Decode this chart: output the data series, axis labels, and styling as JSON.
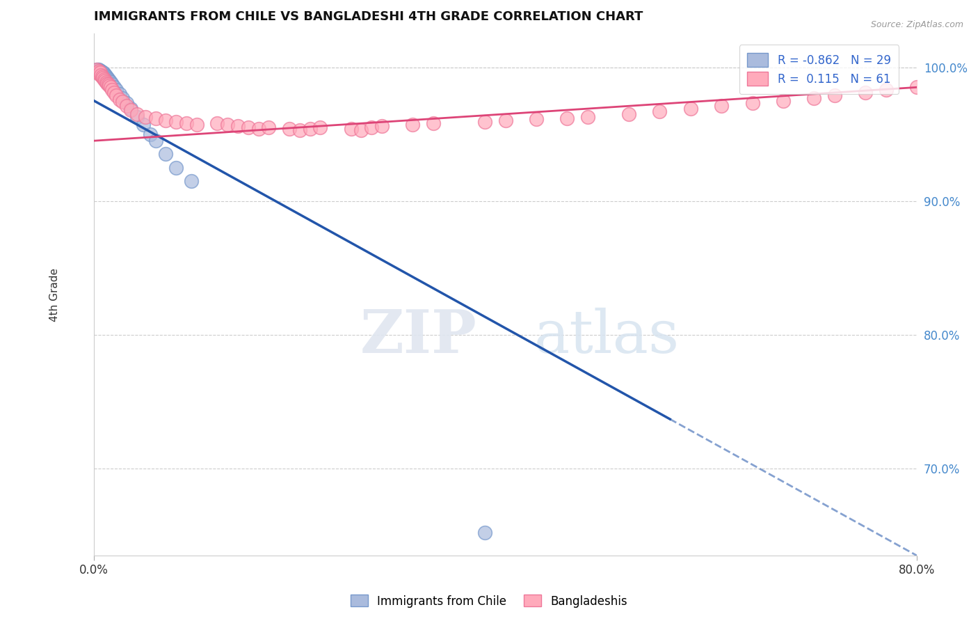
{
  "title": "IMMIGRANTS FROM CHILE VS BANGLADESHI 4TH GRADE CORRELATION CHART",
  "source": "Source: ZipAtlas.com",
  "ylabel": "4th Grade",
  "legend_blue_label": "Immigrants from Chile",
  "legend_pink_label": "Bangladeshis",
  "r_blue": -0.862,
  "n_blue": 29,
  "r_pink": 0.115,
  "n_pink": 61,
  "blue_color": "#aabbdd",
  "pink_color": "#ffaabb",
  "blue_edge_color": "#7799cc",
  "pink_edge_color": "#ee7799",
  "blue_line_color": "#2255aa",
  "pink_line_color": "#dd4477",
  "watermark_zip": "ZIP",
  "watermark_atlas": "atlas",
  "ytick_labels": [
    "70.0%",
    "80.0%",
    "90.0%",
    "100.0%"
  ],
  "ytick_values": [
    0.7,
    0.8,
    0.9,
    1.0
  ],
  "xlim": [
    0.0,
    0.8
  ],
  "ylim": [
    0.635,
    1.025
  ],
  "blue_line_x0": 0.0,
  "blue_line_y0": 0.975,
  "blue_line_x1": 0.8,
  "blue_line_y1": 0.635,
  "pink_line_x0": 0.0,
  "pink_line_y0": 0.945,
  "pink_line_x1": 0.8,
  "pink_line_y1": 0.985,
  "blue_scatter_x": [
    0.003,
    0.004,
    0.005,
    0.006,
    0.007,
    0.008,
    0.009,
    0.01,
    0.011,
    0.012,
    0.013,
    0.014,
    0.015,
    0.016,
    0.018,
    0.02,
    0.022,
    0.025,
    0.028,
    0.032,
    0.036,
    0.042,
    0.048,
    0.055,
    0.06,
    0.07,
    0.08,
    0.095,
    0.38
  ],
  "blue_scatter_y": [
    0.998,
    0.998,
    0.998,
    0.997,
    0.997,
    0.996,
    0.996,
    0.995,
    0.994,
    0.993,
    0.992,
    0.991,
    0.99,
    0.989,
    0.987,
    0.985,
    0.983,
    0.98,
    0.977,
    0.973,
    0.969,
    0.963,
    0.957,
    0.95,
    0.945,
    0.935,
    0.925,
    0.915,
    0.652
  ],
  "pink_scatter_x": [
    0.003,
    0.004,
    0.005,
    0.005,
    0.006,
    0.007,
    0.008,
    0.009,
    0.01,
    0.011,
    0.012,
    0.013,
    0.014,
    0.015,
    0.016,
    0.018,
    0.02,
    0.022,
    0.025,
    0.028,
    0.032,
    0.036,
    0.042,
    0.05,
    0.06,
    0.07,
    0.08,
    0.09,
    0.1,
    0.12,
    0.13,
    0.14,
    0.15,
    0.16,
    0.17,
    0.19,
    0.2,
    0.21,
    0.22,
    0.25,
    0.26,
    0.27,
    0.28,
    0.31,
    0.33,
    0.38,
    0.4,
    0.43,
    0.46,
    0.48,
    0.52,
    0.55,
    0.58,
    0.61,
    0.64,
    0.67,
    0.7,
    0.72,
    0.75,
    0.77,
    0.8
  ],
  "pink_scatter_y": [
    0.998,
    0.996,
    0.995,
    0.997,
    0.996,
    0.994,
    0.993,
    0.992,
    0.991,
    0.99,
    0.989,
    0.988,
    0.987,
    0.986,
    0.985,
    0.983,
    0.981,
    0.979,
    0.976,
    0.974,
    0.971,
    0.968,
    0.965,
    0.963,
    0.962,
    0.96,
    0.959,
    0.958,
    0.957,
    0.958,
    0.957,
    0.956,
    0.955,
    0.954,
    0.955,
    0.954,
    0.953,
    0.954,
    0.955,
    0.954,
    0.953,
    0.955,
    0.956,
    0.957,
    0.958,
    0.959,
    0.96,
    0.961,
    0.962,
    0.963,
    0.965,
    0.967,
    0.969,
    0.971,
    0.973,
    0.975,
    0.977,
    0.979,
    0.981,
    0.983,
    0.985
  ]
}
